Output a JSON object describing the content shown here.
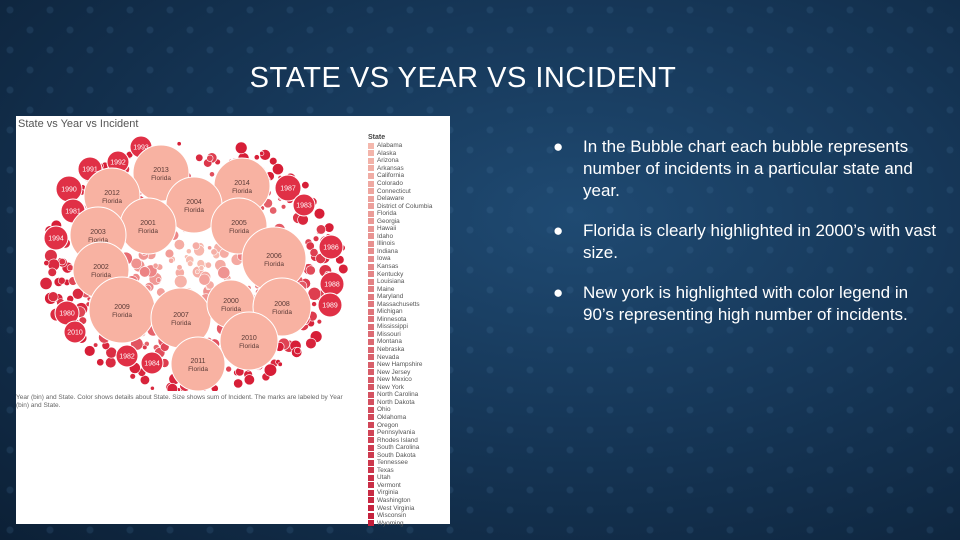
{
  "slide": {
    "title": "STATE VS YEAR VS INCIDENT"
  },
  "chart_data": {
    "type": "bubble",
    "title": "State vs Year vs Incident",
    "caption": "Year (bin) and State.  Color shows details about State.  Size shows sum of Incident.  The marks are labeled by Year (bin) and State.",
    "legend_title": "State",
    "legend_placement": "right",
    "states": [
      "Alabama",
      "Alaska",
      "Arizona",
      "Arkansas",
      "California",
      "Colorado",
      "Connecticut",
      "Delaware",
      "District of Columbia",
      "Florida",
      "Georgia",
      "Hawaii",
      "Idaho",
      "Illinois",
      "Indiana",
      "Iowa",
      "Kansas",
      "Kentucky",
      "Louisiana",
      "Maine",
      "Maryland",
      "Massachusetts",
      "Michigan",
      "Minnesota",
      "Mississippi",
      "Missouri",
      "Montana",
      "Nebraska",
      "Nevada",
      "New Hampshire",
      "New Jersey",
      "New Mexico",
      "New York",
      "North Carolina",
      "North Dakota",
      "Ohio",
      "Oklahoma",
      "Oregon",
      "Pennsylvania",
      "Rhodes Island",
      "South Carolina",
      "South Dakota",
      "Tennessee",
      "Texas",
      "Utah",
      "Vermont",
      "Virginia",
      "Washington",
      "West Virginia",
      "Wisconsin",
      "Wyoming"
    ],
    "legend_color_start": "#f4b8ad",
    "legend_color_end": "#c41e3a",
    "labeled_bubbles": [
      {
        "year": "1993",
        "state": "",
        "color": "#e03046"
      },
      {
        "year": "1992",
        "state": "",
        "color": "#e03046"
      },
      {
        "year": "1991",
        "state": "",
        "color": "#e03046"
      },
      {
        "year": "1990",
        "state": "",
        "color": "#e03046"
      },
      {
        "year": "1981",
        "state": "",
        "color": "#e03046"
      },
      {
        "year": "1994",
        "state": "",
        "color": "#e03046"
      },
      {
        "year": "1980",
        "state": "",
        "color": "#e03046"
      },
      {
        "year": "2010",
        "state": "",
        "color": "#e03046"
      },
      {
        "year": "1982",
        "state": "",
        "color": "#e03046"
      },
      {
        "year": "1984",
        "state": "",
        "color": "#e03046"
      },
      {
        "year": "1987",
        "state": "",
        "color": "#e03046"
      },
      {
        "year": "1983",
        "state": "",
        "color": "#e03046"
      },
      {
        "year": "1986",
        "state": "",
        "color": "#e03046"
      },
      {
        "year": "1988",
        "state": "",
        "color": "#e03046"
      },
      {
        "year": "1989",
        "state": "",
        "color": "#e03046"
      },
      {
        "year": "2013",
        "state": "Florida",
        "color": "#f8b2a2"
      },
      {
        "year": "2012",
        "state": "Florida",
        "color": "#f8b2a2"
      },
      {
        "year": "2014",
        "state": "Florida",
        "color": "#f8b2a2"
      },
      {
        "year": "2004",
        "state": "Florida",
        "color": "#f8b2a2"
      },
      {
        "year": "2001",
        "state": "Florida",
        "color": "#f8b2a2"
      },
      {
        "year": "2003",
        "state": "Florida",
        "color": "#f8b2a2"
      },
      {
        "year": "2005",
        "state": "Florida",
        "color": "#f8b2a2"
      },
      {
        "year": "2002",
        "state": "Florida",
        "color": "#f8b2a2"
      },
      {
        "year": "2006",
        "state": "Florida",
        "color": "#f8b2a2"
      },
      {
        "year": "2009",
        "state": "Florida",
        "color": "#f8b2a2"
      },
      {
        "year": "2007",
        "state": "Florida",
        "color": "#f8b2a2"
      },
      {
        "year": "2000",
        "state": "Florida",
        "color": "#f8b2a2"
      },
      {
        "year": "2008",
        "state": "Florida",
        "color": "#f8b2a2"
      },
      {
        "year": "2010",
        "state": "Florida",
        "color": "#f8b2a2"
      },
      {
        "year": "2011",
        "state": "Florida",
        "color": "#f8b2a2"
      }
    ]
  },
  "bullets": [
    {
      "marker": "●",
      "text": "In the Bubble chart each bubble represents number of incidents in a particular state and year."
    },
    {
      "marker": "●",
      "text": "Florida is clearly highlighted in 2000’s with vast size."
    },
    {
      "marker": "●",
      "text": "New york is highlighted with color legend in 90’s representing high number of incidents."
    }
  ]
}
